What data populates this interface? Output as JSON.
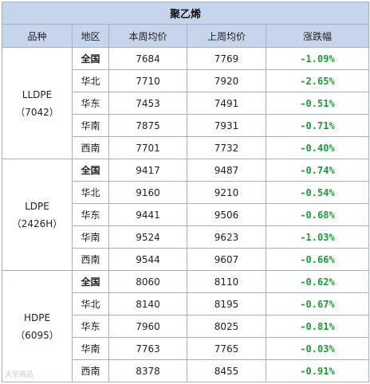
{
  "title": "聚乙烯",
  "headers": [
    "品种",
    "地区",
    "本周均价",
    "上周均价",
    "涨跌幅"
  ],
  "groups": [
    {
      "name": "LLDPE",
      "code": "（7042）",
      "rows": [
        {
          "region": "全国",
          "this_week": "7684",
          "last_week": "7769",
          "change": "-1.09%"
        },
        {
          "region": "华北",
          "this_week": "7710",
          "last_week": "7920",
          "change": "-2.65%"
        },
        {
          "region": "华东",
          "this_week": "7453",
          "last_week": "7491",
          "change": "-0.51%"
        },
        {
          "region": "华南",
          "this_week": "7875",
          "last_week": "7931",
          "change": "-0.71%"
        },
        {
          "region": "西南",
          "this_week": "7701",
          "last_week": "7732",
          "change": "-0.40%"
        }
      ]
    },
    {
      "name": "LDPE",
      "code": "（2426H）",
      "rows": [
        {
          "region": "全国",
          "this_week": "9417",
          "last_week": "9487",
          "change": "-0.74%"
        },
        {
          "region": "华北",
          "this_week": "9160",
          "last_week": "9210",
          "change": "-0.54%"
        },
        {
          "region": "华东",
          "this_week": "9441",
          "last_week": "9506",
          "change": "-0.68%"
        },
        {
          "region": "华南",
          "this_week": "9524",
          "last_week": "9623",
          "change": "-1.03%"
        },
        {
          "region": "西南",
          "this_week": "9544",
          "last_week": "9607",
          "change": "-0.66%"
        }
      ]
    },
    {
      "name": "HDPE",
      "code": "（6095）",
      "rows": [
        {
          "region": "全国",
          "this_week": "8060",
          "last_week": "8110",
          "change": "-0.62%"
        },
        {
          "region": "华北",
          "this_week": "8140",
          "last_week": "8195",
          "change": "-0.67%"
        },
        {
          "region": "华东",
          "this_week": "7960",
          "last_week": "8025",
          "change": "-0.81%"
        },
        {
          "region": "华南",
          "this_week": "7763",
          "last_week": "7765",
          "change": "-0.03%"
        },
        {
          "region": "西南",
          "this_week": "8378",
          "last_week": "8455",
          "change": "-0.91%"
        }
      ]
    }
  ],
  "watermark": "大宗商品",
  "colors": {
    "header_bg": "#c6d4ec",
    "border": "#9fb3c8",
    "change_text": "#1d9a3a"
  }
}
